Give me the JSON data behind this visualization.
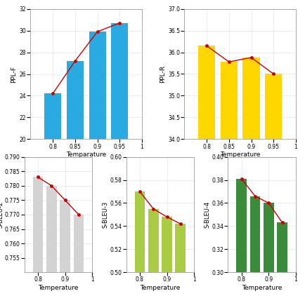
{
  "ppl_f": {
    "x": [
      0.8,
      0.85,
      0.9,
      0.95
    ],
    "y": [
      24.2,
      27.2,
      29.9,
      30.7
    ],
    "color": "#29ABE2",
    "ylabel": "PPL-F",
    "xlabel": "Temparature",
    "ylim": [
      20,
      32
    ],
    "xlim": [
      0.75,
      1.0
    ],
    "yticks": [
      20,
      22,
      24,
      26,
      28,
      30,
      32
    ],
    "xticks": [
      0.8,
      0.85,
      0.9,
      0.95,
      1.0
    ]
  },
  "ppl_r": {
    "x": [
      0.8,
      0.85,
      0.9,
      0.95
    ],
    "y": [
      36.15,
      35.78,
      35.88,
      35.5
    ],
    "color": "#FFD700",
    "ylabel": "PPL-R",
    "xlabel": "Temperature",
    "ylim": [
      34,
      37
    ],
    "xlim": [
      0.75,
      1.0
    ],
    "yticks": [
      34,
      34.5,
      35,
      35.5,
      36,
      36.5,
      37
    ],
    "xticks": [
      0.8,
      0.85,
      0.9,
      0.95,
      1.0
    ]
  },
  "sbleu2": {
    "x": [
      0.8,
      0.85,
      0.9,
      0.95
    ],
    "y": [
      0.783,
      0.78,
      0.775,
      0.77
    ],
    "color": "#D3D3D3",
    "ylabel": "S-BLEU-2",
    "xlabel": "Temperature",
    "ylim": [
      0.75,
      0.79
    ],
    "xlim": [
      0.75,
      1.0
    ],
    "yticks": [
      0.755,
      0.76,
      0.765,
      0.77,
      0.775,
      0.78,
      0.785,
      0.79
    ],
    "xticks": [
      0.8,
      0.9,
      1.0
    ]
  },
  "sbleu3": {
    "x": [
      0.8,
      0.85,
      0.9,
      0.95
    ],
    "y": [
      0.57,
      0.555,
      0.548,
      0.542
    ],
    "color": "#AACC44",
    "ylabel": "S-BLEU-3",
    "xlabel": "Temperature",
    "ylim": [
      0.5,
      0.6
    ],
    "xlim": [
      0.75,
      1.0
    ],
    "yticks": [
      0.5,
      0.52,
      0.54,
      0.56,
      0.58,
      0.6
    ],
    "xticks": [
      0.8,
      0.9,
      1.0
    ]
  },
  "sbleu4": {
    "x": [
      0.8,
      0.85,
      0.9,
      0.95
    ],
    "y": [
      0.381,
      0.366,
      0.36,
      0.343
    ],
    "color": "#3A8C3A",
    "ylabel": "S-BLEU-4",
    "xlabel": "Temperature",
    "ylim": [
      0.3,
      0.4
    ],
    "xlim": [
      0.75,
      1.0
    ],
    "yticks": [
      0.3,
      0.32,
      0.34,
      0.36,
      0.38,
      0.4
    ],
    "xticks": [
      0.8,
      0.9,
      1.0
    ]
  },
  "line_color": "#CC0000",
  "line_marker": "o",
  "line_markersize": 2.5,
  "line_linewidth": 1.0,
  "bar_width": 0.038
}
